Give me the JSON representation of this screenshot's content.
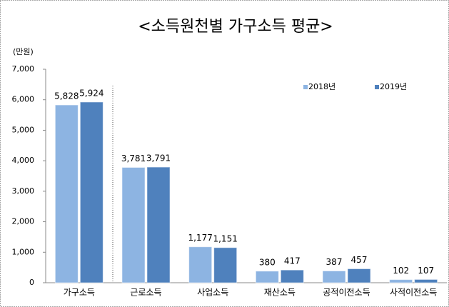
{
  "chart_data": {
    "type": "bar",
    "title": "<소득원천별 가구소득 평균>",
    "unit_label": "(만원)",
    "categories": [
      "가구소득",
      "근로소득",
      "사업소득",
      "재산소득",
      "공적이전소득",
      "사적이전소득"
    ],
    "series": [
      {
        "name": "2018년",
        "color": "#8db4e2",
        "values": [
          5828,
          3781,
          1177,
          380,
          387,
          102
        ],
        "value_labels": [
          "5,828",
          "3,781",
          "1,177",
          "380",
          "387",
          "102"
        ]
      },
      {
        "name": "2019년",
        "color": "#4f81bd",
        "values": [
          5924,
          3791,
          1151,
          417,
          457,
          107
        ],
        "value_labels": [
          "5,924",
          "3,791",
          "1,151",
          "417",
          "457",
          "107"
        ]
      }
    ],
    "ylim": [
      0,
      7000
    ],
    "yticks": [
      0,
      {
        "value": 1000,
        "label": "1,000"
      },
      {
        "value": 2000,
        "label": "2,000"
      },
      {
        "value": 3000,
        "label": "3,000"
      },
      {
        "value": 4000,
        "label": "4,000"
      },
      {
        "value": 5000,
        "label": "5,000"
      },
      {
        "value": 6000,
        "label": "6,000"
      },
      {
        "value": 7000,
        "label": "7,000"
      }
    ],
    "grid": false,
    "legend": "top-right"
  }
}
